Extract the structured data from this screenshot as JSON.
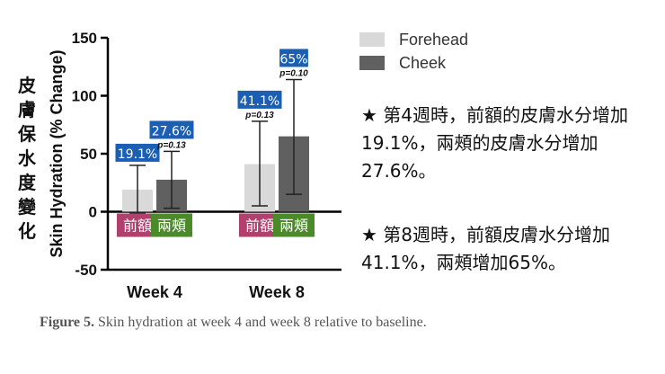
{
  "chart_data": {
    "type": "bar",
    "categories": [
      "Week 4",
      "Week 8"
    ],
    "series": [
      {
        "name": "Forehead",
        "color": "#d9d9d9",
        "values": [
          19.1,
          41.1
        ],
        "err_low": [
          -1,
          5
        ],
        "err_high": [
          40,
          78
        ]
      },
      {
        "name": "Cheek",
        "color": "#606060",
        "values": [
          27.6,
          65
        ],
        "err_low": [
          3,
          15
        ],
        "err_high": [
          52,
          114
        ]
      }
    ],
    "ylabel": "Skin Hydration (% Change)",
    "ylim": [
      -50,
      150
    ],
    "yticks": [
      "-50",
      "0",
      "50",
      "100",
      "150"
    ],
    "xlabel": "",
    "value_labels": [
      [
        "19.1%",
        "41.1%"
      ],
      [
        "27.6%",
        "65%"
      ]
    ],
    "p_labels": [
      null,
      [
        "p=0.13",
        "p=0.10"
      ]
    ],
    "p_labels_week8_forehead": "p=0.13",
    "inner_labels": [
      [
        "前額",
        "前額"
      ],
      [
        "兩頰",
        "兩頰"
      ]
    ],
    "inner_label_colors": [
      "#b0406e",
      "#4a8a28"
    ],
    "value_label_color": "#1a5fb4"
  },
  "ylabel_cjk": [
    "皮",
    "膚",
    "保",
    "水",
    "度",
    "變",
    "化"
  ],
  "notes": [
    "★ 第4週時，前額的皮膚水分增加19.1%，兩頰的皮膚水分增加27.6%。",
    "★ 第8週時，前額皮膚水分增加41.1%，兩頰增加65%。"
  ],
  "caption": {
    "label": "Figure 5.",
    "text": " Skin hydration at week 4 and week 8 relative to baseline."
  }
}
